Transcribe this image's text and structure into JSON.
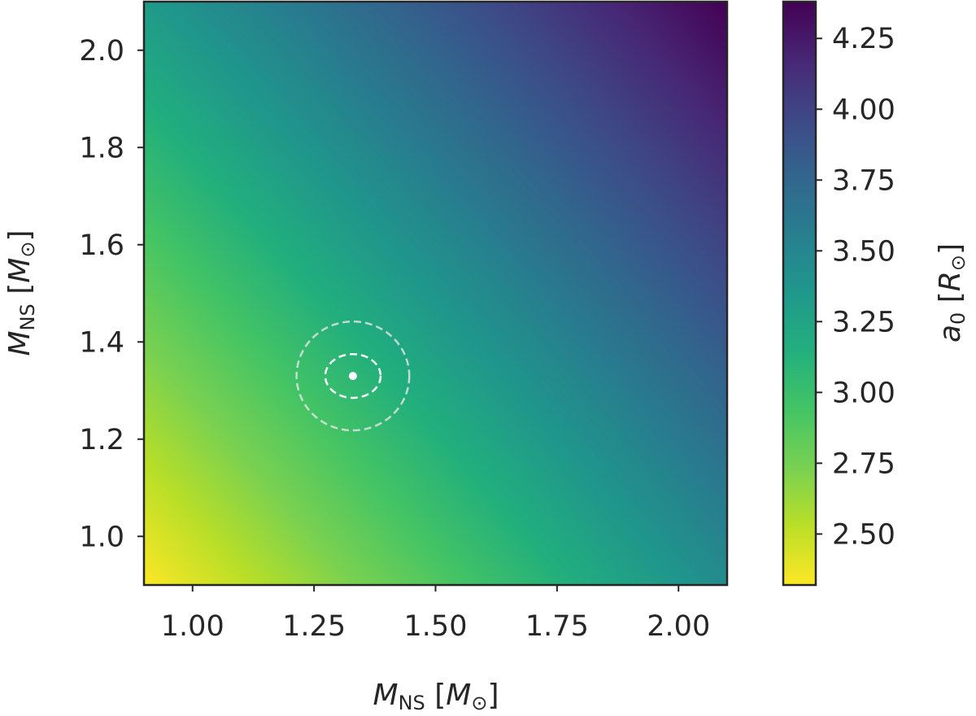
{
  "chart_data": {
    "type": "heatmap",
    "title": "",
    "x": {
      "label_main": "M",
      "label_sub": "NS",
      "label_unit_open": " [",
      "label_unit_main": "M",
      "label_unit_sub": "⊙",
      "label_unit_close": "]",
      "range": [
        0.9,
        2.1
      ],
      "ticks": [
        1.0,
        1.25,
        1.5,
        1.75,
        2.0
      ],
      "tick_labels": [
        "1.00",
        "1.25",
        "1.50",
        "1.75",
        "2.00"
      ]
    },
    "y": {
      "label_main": "M",
      "label_sub": "NS",
      "label_unit_open": " [",
      "label_unit_main": "M",
      "label_unit_sub": "⊙",
      "label_unit_close": "]",
      "range": [
        0.9,
        2.1
      ],
      "ticks": [
        1.0,
        1.2,
        1.4,
        1.6,
        1.8,
        2.0
      ],
      "tick_labels": [
        "1.0",
        "1.2",
        "1.4",
        "1.6",
        "1.8",
        "2.0"
      ]
    },
    "colorbar": {
      "label_main": "a",
      "label_sub": "0",
      "label_unit_open": " [",
      "label_unit_main": "R",
      "label_unit_sub": "⊙",
      "label_unit_close": "]",
      "range": [
        2.32,
        4.38
      ],
      "ticks": [
        2.5,
        2.75,
        3.0,
        3.25,
        3.5,
        3.75,
        4.0,
        4.25
      ],
      "tick_labels": [
        "2.50",
        "2.75",
        "3.00",
        "3.25",
        "3.50",
        "3.75",
        "4.00",
        "4.25"
      ],
      "colormap": "viridis_r"
    },
    "field": {
      "description": "a0 increases with total mass",
      "corner_values": {
        "x0.9_y0.9": 2.32,
        "x2.1_y0.9": 3.45,
        "x0.9_y2.1": 3.32,
        "x2.1_y2.1": 4.38
      }
    },
    "marker": {
      "x": 1.33,
      "y": 1.33
    },
    "contours": [
      {
        "level": "inner",
        "cx": 1.33,
        "cy": 1.33,
        "rx": 0.057,
        "ry": 0.045
      },
      {
        "level": "outer",
        "cx": 1.33,
        "cy": 1.33,
        "rx": 0.116,
        "ry": 0.112
      }
    ],
    "grid": false,
    "legend": "none"
  }
}
